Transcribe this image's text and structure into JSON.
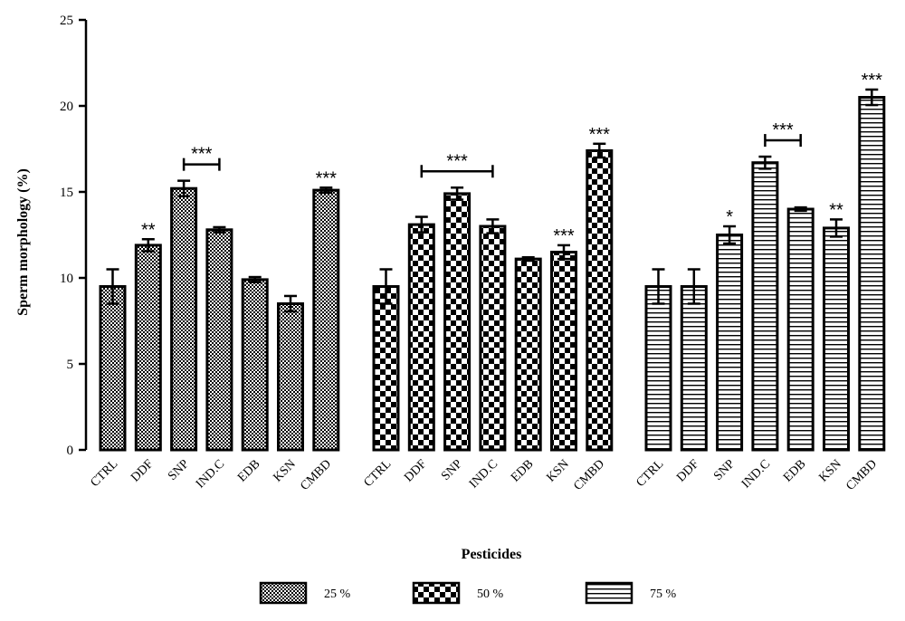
{
  "chart_data": {
    "type": "bar",
    "title": "",
    "xlabel": "Pesticides",
    "ylabel": "Sperm morphology (%)",
    "ylim": [
      0,
      25
    ],
    "yticks": [
      0,
      5,
      10,
      15,
      20,
      25
    ],
    "grid": false,
    "legend_position": "bottom",
    "categories": [
      "CTRL",
      "DDF",
      "SNP",
      "IND.C",
      "EDB",
      "KSN",
      "CMBD"
    ],
    "series": [
      {
        "name": "25 %",
        "pattern": "fine-checker",
        "values": [
          9.5,
          11.9,
          15.2,
          12.8,
          9.9,
          8.5,
          15.1
        ],
        "errors": [
          1.0,
          0.35,
          0.45,
          0.15,
          0.15,
          0.45,
          0.15
        ],
        "significance": [
          "",
          "**",
          "",
          "",
          "",
          "",
          "***"
        ]
      },
      {
        "name": "50 %",
        "pattern": "coarse-checker",
        "values": [
          9.5,
          13.1,
          14.9,
          13.0,
          11.1,
          11.5,
          17.4
        ],
        "errors": [
          1.0,
          0.45,
          0.35,
          0.4,
          0.1,
          0.4,
          0.4
        ],
        "significance": [
          "",
          "",
          "",
          "",
          "",
          "***",
          "***"
        ]
      },
      {
        "name": "75 %",
        "pattern": "horizontal-stripes",
        "values": [
          9.5,
          9.5,
          12.5,
          16.7,
          14.0,
          12.9,
          20.5
        ],
        "errors": [
          1.0,
          1.0,
          0.5,
          0.35,
          0.1,
          0.5,
          0.45
        ],
        "significance": [
          "",
          "",
          "*",
          "",
          "",
          "**",
          "***"
        ]
      }
    ],
    "brackets": [
      {
        "series": 0,
        "from": 2,
        "to": 3,
        "label": "***"
      },
      {
        "series": 1,
        "from": 1,
        "to": 3,
        "label": "***"
      },
      {
        "series": 2,
        "from": 3,
        "to": 4,
        "label": "***"
      }
    ]
  }
}
